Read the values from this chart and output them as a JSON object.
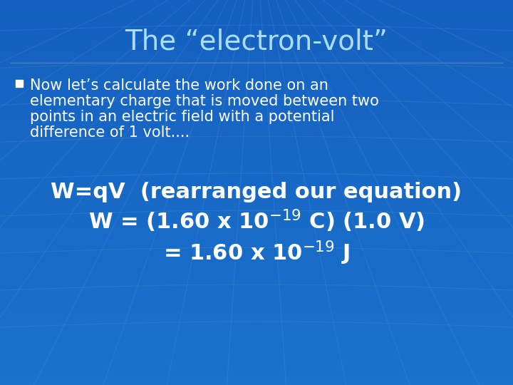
{
  "title": "The “electron-volt”",
  "title_fontsize": 28,
  "title_color": "#AADDFF",
  "bg_color_top": "#1560C0",
  "bg_color_bottom": "#1A70CC",
  "bullet_text_lines": [
    "Now let’s calculate the work done on an",
    "elementary charge that is moved between two",
    "points in an electric field with a potential",
    "difference of 1 volt...."
  ],
  "bullet_fontsize": 15,
  "bullet_color": "#FFFFFF",
  "equation_line1": "W=qV  (rearranged our equation)",
  "equation_line2": "W = (1.60 x 10$^{-19}$ C) (1.0 V)",
  "equation_line3": "= 1.60 x 10$^{-19}$ J",
  "equation_fontsize": 22,
  "equation_color": "#FFFFFF",
  "grid_line_color": "#4488CC",
  "grid_line_alpha": 0.35
}
